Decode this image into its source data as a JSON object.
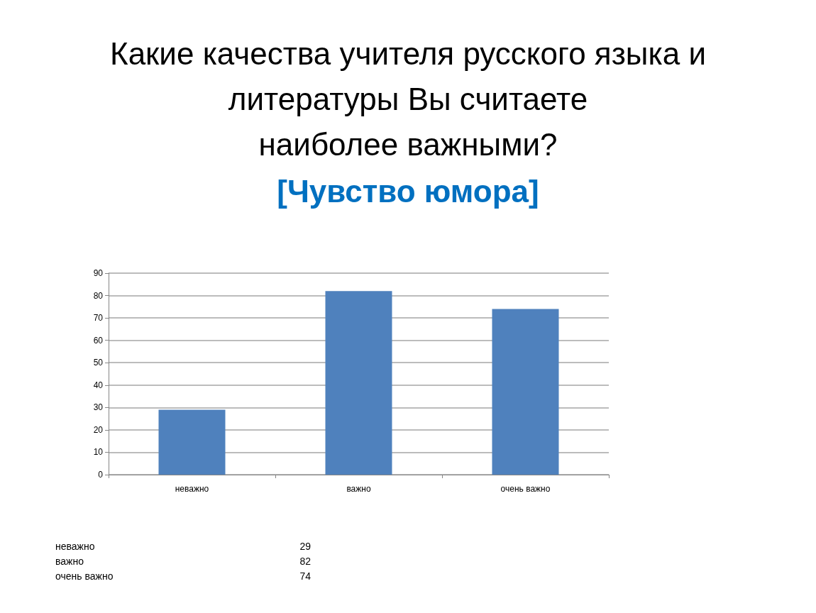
{
  "chart_data": {
    "type": "bar",
    "title": "Какие качества учителя русского языка и\nлитературы Вы считаете\nнаиболее важными?",
    "subtitle": "[Чувство юмора]",
    "categories": [
      "неважно",
      "важно",
      "очень важно"
    ],
    "values": [
      29,
      82,
      74
    ],
    "color": "#4f81bd",
    "ylim": [
      0,
      90
    ],
    "yticks": [
      0,
      10,
      20,
      30,
      40,
      50,
      60,
      70,
      80,
      90
    ],
    "grid": "y",
    "annotations": [
      "29",
      "82",
      "74"
    ]
  }
}
